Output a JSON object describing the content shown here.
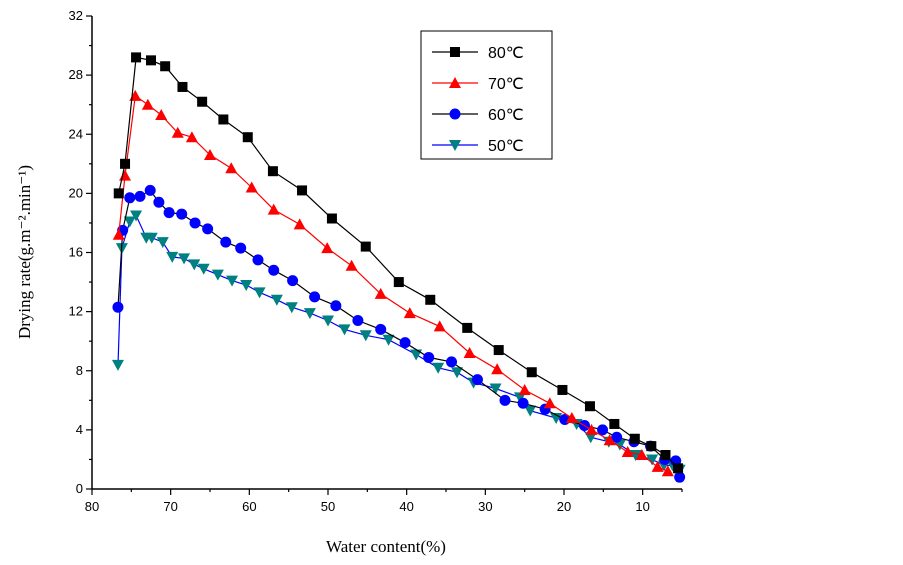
{
  "chart_data": {
    "type": "line",
    "title": "",
    "xlabel": "Water content(%)",
    "ylabel": "Drying rate(g.m⁻².min⁻¹)",
    "xlim": [
      80,
      5
    ],
    "ylim": [
      0,
      32
    ],
    "xticks": [
      80,
      70,
      60,
      50,
      40,
      30,
      20,
      10
    ],
    "yticks": [
      0,
      4,
      8,
      12,
      16,
      20,
      24,
      28,
      32
    ],
    "grid": false,
    "legend_position": "top-right",
    "series": [
      {
        "name": "80℃",
        "marker": "square",
        "marker_color": "#000000",
        "line_color": "#000000",
        "x": [
          76.6,
          75.8,
          74.4,
          72.5,
          70.7,
          68.5,
          66,
          63.3,
          60.2,
          57,
          53.3,
          49.5,
          45.2,
          41,
          37,
          32.3,
          28.3,
          24.1,
          20.2,
          16.7,
          13.6,
          11,
          8.9,
          7.1,
          5.5
        ],
        "y": [
          20.0,
          22.0,
          29.2,
          29.0,
          28.6,
          27.2,
          26.2,
          25.0,
          23.8,
          21.5,
          20.2,
          18.3,
          16.4,
          14.0,
          12.8,
          10.9,
          9.4,
          7.9,
          6.7,
          5.6,
          4.4,
          3.4,
          2.9,
          2.3,
          1.4
        ]
      },
      {
        "name": "70℃",
        "marker": "triangle-up",
        "marker_color": "#ff0000",
        "line_color": "#ff0000",
        "x": [
          76.6,
          75.8,
          74.5,
          72.9,
          71.2,
          69.1,
          67.3,
          65,
          62.3,
          59.7,
          56.9,
          53.6,
          50.1,
          47,
          43.3,
          39.6,
          35.8,
          32,
          28.5,
          25,
          21.8,
          19,
          16.5,
          14.2,
          11.9,
          10.1,
          8.1,
          6.8
        ],
        "y": [
          17.2,
          21.2,
          26.6,
          26.0,
          25.3,
          24.1,
          23.8,
          22.6,
          21.7,
          20.4,
          18.9,
          17.9,
          16.3,
          15.1,
          13.2,
          11.9,
          11.0,
          9.2,
          8.1,
          6.7,
          5.8,
          4.8,
          4.0,
          3.3,
          2.5,
          2.3,
          1.5,
          1.2
        ]
      },
      {
        "name": "60℃",
        "marker": "circle",
        "marker_color": "#0000ff",
        "line_color": "#000000",
        "x": [
          76.7,
          76.1,
          75.2,
          73.9,
          72.6,
          71.5,
          70.2,
          68.6,
          66.9,
          65.3,
          63,
          61.1,
          58.9,
          56.9,
          54.5,
          51.7,
          49,
          46.2,
          43.3,
          40.2,
          37.2,
          34.3,
          31,
          27.5,
          25.2,
          22.4,
          19.9,
          17.4,
          15.1,
          13.3,
          11.1,
          9,
          7.2,
          5.8,
          5.3
        ],
        "y": [
          12.3,
          17.5,
          19.7,
          19.8,
          20.2,
          19.4,
          18.7,
          18.6,
          18.0,
          17.6,
          16.7,
          16.3,
          15.5,
          14.8,
          14.1,
          13.0,
          12.4,
          11.4,
          10.8,
          9.9,
          8.9,
          8.6,
          7.4,
          6.0,
          5.8,
          5.4,
          4.7,
          4.3,
          4.0,
          3.5,
          3.2,
          2.9,
          2.0,
          1.9,
          0.8
        ]
      },
      {
        "name": "50℃",
        "marker": "triangle-down",
        "marker_color": "#008080",
        "line_color": "#0000ff",
        "x": [
          76.7,
          76.2,
          75.2,
          74.4,
          73.1,
          72.4,
          71,
          69.8,
          68.3,
          67,
          65.8,
          64,
          62.2,
          60.4,
          58.7,
          56.5,
          54.6,
          52.3,
          50,
          47.9,
          45.2,
          42.3,
          38.8,
          36,
          33.6,
          31.5,
          28.7,
          25.6,
          24.3,
          21,
          18.4,
          16.6,
          14.3,
          12.9,
          10.9,
          8.8,
          7.3,
          6.2,
          5.3
        ],
        "y": [
          8.4,
          16.3,
          18.1,
          18.5,
          17.0,
          17.0,
          16.7,
          15.7,
          15.6,
          15.2,
          14.9,
          14.5,
          14.1,
          13.8,
          13.3,
          12.8,
          12.3,
          11.9,
          11.4,
          10.8,
          10.4,
          10.1,
          9.1,
          8.2,
          7.9,
          7.2,
          6.8,
          6.2,
          5.3,
          4.8,
          4.4,
          3.5,
          3.2,
          3.0,
          2.3,
          2.0,
          1.6,
          1.6,
          1.3
        ]
      }
    ]
  }
}
